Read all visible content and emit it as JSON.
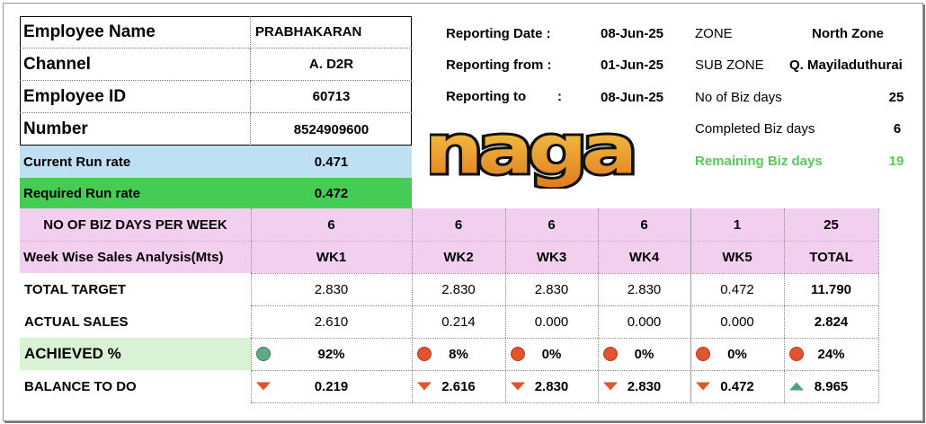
{
  "employee": {
    "name_label": "Employee Name",
    "name_value": "PRABHAKARAN",
    "channel_label": "Channel",
    "channel_value": "A. D2R",
    "id_label": "Employee ID",
    "id_value": "60713",
    "number_label": "Number",
    "number_value": "8524909600"
  },
  "runrate": {
    "current_label": "Current Run rate",
    "current_value": "0.471",
    "required_label": "Required Run rate",
    "required_value": "0.472"
  },
  "reporting": {
    "date_label": "Reporting Date :",
    "date_value": "08-Jun-25",
    "from_label": "Reporting from :",
    "from_value": "01-Jun-25",
    "to_label": "Reporting to",
    "to_colon": ":",
    "to_value": "08-Jun-25"
  },
  "zone": {
    "zone_label": "ZONE",
    "zone_value": "North Zone",
    "subzone_label": "SUB ZONE",
    "subzone_value": "Q. Mayiladuthurai",
    "bizdays_label": "No of Biz days",
    "bizdays_value": "25",
    "completed_label": "Completed Biz days",
    "completed_value": "6",
    "remaining_label": "Remaining Biz days",
    "remaining_value": "19"
  },
  "logo_text": "naga",
  "colors": {
    "light_blue": "#bde1f3",
    "green": "#44cc55",
    "pink": "#f2cfee",
    "light_green": "#d9f2d3",
    "remaining_text": "#55cc55",
    "red_icon": "#e0552d",
    "teal_icon": "#5fa88a"
  },
  "table": {
    "bizdays_row_label": "NO OF BIZ DAYS PER WEEK",
    "week_row_label": "Week Wise Sales Analysis(Mts)",
    "target_label": "TOTAL TARGET",
    "actual_label": "ACTUAL SALES",
    "achieved_label": "ACHIEVED  %",
    "balance_label": "BALANCE TO DO",
    "columns": [
      {
        "days": "6",
        "week": "WK1",
        "target": "2.830",
        "actual": "2.610",
        "achieved": "92%",
        "achieved_icon": "teal-circle-icon",
        "balance": "0.219",
        "balance_icon": "red-down-triangle-icon"
      },
      {
        "days": "6",
        "week": "WK2",
        "target": "2.830",
        "actual": "0.214",
        "achieved": "8%",
        "achieved_icon": "red-circle-icon",
        "balance": "2.616",
        "balance_icon": "red-down-triangle-icon"
      },
      {
        "days": "6",
        "week": "WK3",
        "target": "2.830",
        "actual": "0.000",
        "achieved": "0%",
        "achieved_icon": "red-circle-icon",
        "balance": "2.830",
        "balance_icon": "red-down-triangle-icon"
      },
      {
        "days": "6",
        "week": "WK4",
        "target": "2.830",
        "actual": "0.000",
        "achieved": "0%",
        "achieved_icon": "red-circle-icon",
        "balance": "2.830",
        "balance_icon": "red-down-triangle-icon"
      },
      {
        "days": "1",
        "week": "WK5",
        "target": "0.472",
        "actual": "0.000",
        "achieved": "0%",
        "achieved_icon": "red-circle-icon",
        "balance": "0.472",
        "balance_icon": "red-down-triangle-icon"
      },
      {
        "days": "25",
        "week": "TOTAL",
        "target": "11.790",
        "actual": "2.824",
        "achieved": "24%",
        "achieved_icon": "red-circle-icon",
        "balance": "8.965",
        "balance_icon": "teal-up-triangle-icon"
      }
    ]
  }
}
